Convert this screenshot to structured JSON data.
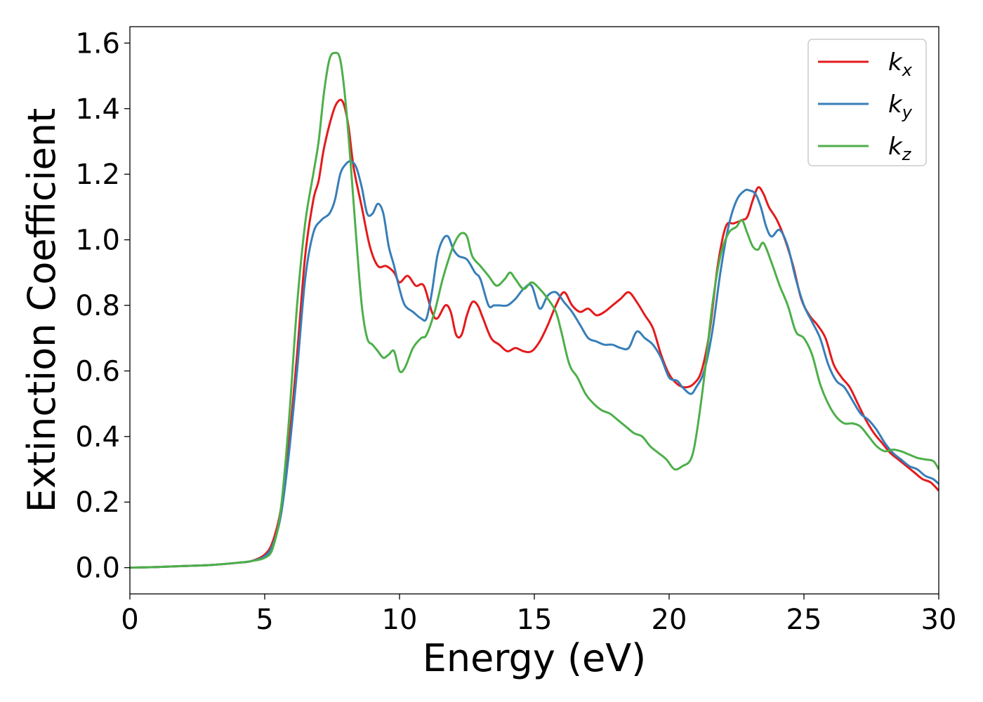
{
  "chart_data": {
    "type": "line",
    "xlabel": "Energy (eV)",
    "ylabel": "Extinction Coefficient",
    "xlim": [
      0,
      30
    ],
    "ylim": [
      -0.08,
      1.65
    ],
    "xticks": [
      0,
      5,
      10,
      15,
      20,
      25,
      30
    ],
    "yticks": [
      0.0,
      0.2,
      0.4,
      0.6,
      0.8,
      1.0,
      1.2,
      1.4,
      1.6
    ],
    "grid": false,
    "legend_position": "top-right",
    "series": [
      {
        "name": "k",
        "sub": "x",
        "color": "#e41a1c",
        "x": [
          0,
          1,
          2,
          3,
          4,
          4.5,
          5,
          5.3,
          5.6,
          5.9,
          6.2,
          6.5,
          6.8,
          7.0,
          7.2,
          7.5,
          7.7,
          7.9,
          8.1,
          8.3,
          8.6,
          8.9,
          9.2,
          9.5,
          9.8,
          10.0,
          10.3,
          10.6,
          10.9,
          11.2,
          11.4,
          11.7,
          11.9,
          12.1,
          12.3,
          12.5,
          12.7,
          12.9,
          13.1,
          13.4,
          13.7,
          14.0,
          14.3,
          14.6,
          14.9,
          15.2,
          15.5,
          15.8,
          16.1,
          16.4,
          16.7,
          17.0,
          17.3,
          17.6,
          17.9,
          18.2,
          18.5,
          18.8,
          19.1,
          19.4,
          19.7,
          20.0,
          20.3,
          20.6,
          20.9,
          21.2,
          21.5,
          21.8,
          22.1,
          22.4,
          22.7,
          22.9,
          23.1,
          23.3,
          23.5,
          23.7,
          24.0,
          24.3,
          24.6,
          24.9,
          25.2,
          25.5,
          25.8,
          26.1,
          26.4,
          26.7,
          27.0,
          27.3,
          27.6,
          27.9,
          28.2,
          28.5,
          28.8,
          29.1,
          29.4,
          29.7,
          30.0
        ],
        "values": [
          0.0,
          0.002,
          0.005,
          0.008,
          0.015,
          0.02,
          0.04,
          0.08,
          0.18,
          0.38,
          0.65,
          0.95,
          1.12,
          1.18,
          1.28,
          1.38,
          1.42,
          1.42,
          1.35,
          1.22,
          1.1,
          0.98,
          0.92,
          0.92,
          0.9,
          0.87,
          0.89,
          0.86,
          0.86,
          0.78,
          0.76,
          0.8,
          0.78,
          0.71,
          0.71,
          0.77,
          0.81,
          0.8,
          0.76,
          0.7,
          0.68,
          0.66,
          0.67,
          0.66,
          0.66,
          0.69,
          0.74,
          0.8,
          0.84,
          0.8,
          0.78,
          0.79,
          0.77,
          0.78,
          0.8,
          0.82,
          0.84,
          0.81,
          0.77,
          0.73,
          0.65,
          0.59,
          0.56,
          0.55,
          0.56,
          0.6,
          0.72,
          0.92,
          1.04,
          1.05,
          1.06,
          1.07,
          1.12,
          1.16,
          1.14,
          1.1,
          1.06,
          1.0,
          0.92,
          0.82,
          0.77,
          0.74,
          0.7,
          0.62,
          0.58,
          0.55,
          0.5,
          0.45,
          0.41,
          0.38,
          0.35,
          0.33,
          0.31,
          0.29,
          0.27,
          0.26,
          0.235
        ]
      },
      {
        "name": "k",
        "sub": "y",
        "color": "#377eb8",
        "x": [
          0,
          1,
          2,
          3,
          4,
          4.5,
          5,
          5.3,
          5.6,
          5.9,
          6.2,
          6.5,
          6.8,
          7.1,
          7.4,
          7.6,
          7.8,
          8.0,
          8.2,
          8.4,
          8.6,
          8.8,
          9.0,
          9.2,
          9.4,
          9.6,
          9.8,
          10.0,
          10.2,
          10.5,
          10.8,
          11.0,
          11.2,
          11.4,
          11.6,
          11.8,
          12.0,
          12.2,
          12.5,
          12.8,
          13.0,
          13.3,
          13.5,
          13.7,
          14.0,
          14.3,
          14.6,
          14.9,
          15.2,
          15.5,
          15.8,
          16.1,
          16.4,
          16.7,
          17.0,
          17.3,
          17.6,
          17.9,
          18.2,
          18.5,
          18.8,
          19.1,
          19.4,
          19.7,
          20.0,
          20.3,
          20.5,
          20.8,
          21.0,
          21.3,
          21.6,
          21.9,
          22.2,
          22.5,
          22.8,
          23.0,
          23.2,
          23.4,
          23.6,
          23.8,
          24.1,
          24.4,
          24.7,
          25.0,
          25.3,
          25.6,
          25.9,
          26.2,
          26.5,
          26.8,
          27.1,
          27.4,
          27.7,
          28.0,
          28.3,
          28.6,
          28.9,
          29.2,
          29.5,
          29.8,
          30.0
        ],
        "values": [
          0.0,
          0.002,
          0.005,
          0.008,
          0.015,
          0.02,
          0.035,
          0.07,
          0.16,
          0.35,
          0.6,
          0.88,
          1.02,
          1.06,
          1.08,
          1.12,
          1.2,
          1.23,
          1.24,
          1.22,
          1.16,
          1.08,
          1.08,
          1.11,
          1.08,
          0.98,
          0.92,
          0.85,
          0.8,
          0.78,
          0.76,
          0.76,
          0.84,
          0.95,
          1.0,
          1.01,
          0.97,
          0.95,
          0.94,
          0.9,
          0.88,
          0.8,
          0.8,
          0.8,
          0.8,
          0.82,
          0.85,
          0.86,
          0.79,
          0.83,
          0.84,
          0.81,
          0.78,
          0.74,
          0.7,
          0.69,
          0.68,
          0.68,
          0.67,
          0.67,
          0.72,
          0.7,
          0.68,
          0.64,
          0.58,
          0.57,
          0.55,
          0.53,
          0.55,
          0.6,
          0.72,
          0.9,
          1.04,
          1.12,
          1.15,
          1.15,
          1.14,
          1.1,
          1.04,
          1.01,
          1.03,
          0.98,
          0.88,
          0.8,
          0.75,
          0.7,
          0.62,
          0.57,
          0.55,
          0.51,
          0.47,
          0.45,
          0.42,
          0.38,
          0.35,
          0.33,
          0.31,
          0.3,
          0.28,
          0.27,
          0.255
        ]
      },
      {
        "name": "k",
        "sub": "z",
        "color": "#4daf4a",
        "x": [
          0,
          1,
          2,
          3,
          4,
          4.5,
          5,
          5.3,
          5.6,
          5.9,
          6.2,
          6.5,
          6.8,
          7.0,
          7.2,
          7.4,
          7.6,
          7.8,
          8.0,
          8.2,
          8.4,
          8.6,
          8.8,
          9.0,
          9.2,
          9.4,
          9.6,
          9.8,
          10.0,
          10.2,
          10.5,
          10.8,
          11.0,
          11.3,
          11.6,
          11.9,
          12.1,
          12.3,
          12.5,
          12.7,
          13.0,
          13.3,
          13.6,
          13.9,
          14.1,
          14.3,
          14.6,
          14.9,
          15.2,
          15.5,
          15.8,
          16.0,
          16.3,
          16.6,
          16.9,
          17.2,
          17.5,
          17.8,
          18.1,
          18.4,
          18.7,
          19.0,
          19.3,
          19.6,
          19.9,
          20.2,
          20.5,
          20.8,
          21.0,
          21.3,
          21.6,
          21.9,
          22.2,
          22.5,
          22.7,
          22.9,
          23.1,
          23.3,
          23.5,
          23.8,
          24.1,
          24.4,
          24.7,
          25.0,
          25.3,
          25.6,
          25.9,
          26.2,
          26.5,
          26.8,
          27.1,
          27.4,
          27.7,
          28.0,
          28.3,
          28.6,
          28.9,
          29.2,
          29.5,
          29.8,
          30.0
        ],
        "values": [
          0.0,
          0.002,
          0.005,
          0.008,
          0.015,
          0.02,
          0.03,
          0.06,
          0.18,
          0.45,
          0.8,
          1.05,
          1.2,
          1.3,
          1.45,
          1.55,
          1.57,
          1.55,
          1.42,
          1.22,
          1.0,
          0.8,
          0.7,
          0.68,
          0.66,
          0.64,
          0.65,
          0.66,
          0.6,
          0.61,
          0.67,
          0.7,
          0.71,
          0.78,
          0.88,
          0.96,
          1.0,
          1.02,
          1.01,
          0.95,
          0.92,
          0.89,
          0.86,
          0.88,
          0.9,
          0.88,
          0.85,
          0.87,
          0.85,
          0.82,
          0.78,
          0.72,
          0.62,
          0.58,
          0.53,
          0.5,
          0.48,
          0.47,
          0.45,
          0.43,
          0.41,
          0.4,
          0.37,
          0.35,
          0.33,
          0.3,
          0.31,
          0.33,
          0.4,
          0.58,
          0.8,
          0.95,
          1.02,
          1.04,
          1.06,
          1.02,
          0.98,
          0.97,
          0.99,
          0.93,
          0.86,
          0.8,
          0.72,
          0.7,
          0.65,
          0.56,
          0.5,
          0.46,
          0.44,
          0.44,
          0.43,
          0.4,
          0.37,
          0.355,
          0.36,
          0.355,
          0.345,
          0.335,
          0.33,
          0.325,
          0.3
        ]
      }
    ]
  }
}
